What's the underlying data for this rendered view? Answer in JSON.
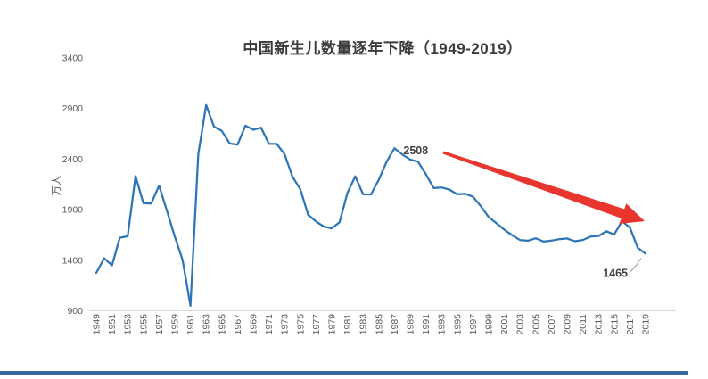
{
  "chart_data": {
    "type": "line",
    "title": "中国新生儿数量逐年下降（1949-2019）",
    "ylabel": "万人",
    "series_name": "中国新生儿数量",
    "ylim": [
      900,
      3400
    ],
    "y_ticks": [
      900,
      1400,
      1900,
      2400,
      2900,
      3400
    ],
    "grid": false,
    "legend_position": "none",
    "years": [
      1949,
      1950,
      1951,
      1952,
      1953,
      1954,
      1955,
      1956,
      1957,
      1958,
      1959,
      1960,
      1961,
      1962,
      1963,
      1964,
      1965,
      1966,
      1967,
      1968,
      1969,
      1970,
      1971,
      1972,
      1973,
      1974,
      1975,
      1976,
      1977,
      1978,
      1979,
      1980,
      1981,
      1982,
      1983,
      1984,
      1985,
      1986,
      1987,
      1988,
      1989,
      1990,
      1991,
      1992,
      1993,
      1994,
      1995,
      1996,
      1997,
      1998,
      1999,
      2000,
      2001,
      2002,
      2003,
      2004,
      2005,
      2006,
      2007,
      2008,
      2009,
      2010,
      2011,
      2012,
      2013,
      2014,
      2015,
      2016,
      2017,
      2018,
      2019
    ],
    "values": [
      1275,
      1419,
      1349,
      1622,
      1637,
      2232,
      1965,
      1961,
      2138,
      1889,
      1635,
      1402,
      949,
      2451,
      2934,
      2721,
      2679,
      2554,
      2543,
      2731,
      2690,
      2710,
      2551,
      2550,
      2447,
      2226,
      2102,
      1849,
      1783,
      1733,
      1715,
      1776,
      2064,
      2230,
      2052,
      2050,
      2196,
      2374,
      2508,
      2445,
      2396,
      2374,
      2250,
      2113,
      2120,
      2098,
      2052,
      2057,
      2028,
      1934,
      1827,
      1765,
      1702,
      1647,
      1599,
      1593,
      1617,
      1584,
      1594,
      1608,
      1615,
      1588,
      1600,
      1635,
      1640,
      1687,
      1655,
      1786,
      1723,
      1523,
      1465
    ],
    "x_tick_labels": [
      "1949",
      "1951",
      "1953",
      "1955",
      "1957",
      "1959",
      "1961",
      "1963",
      "1965",
      "1967",
      "1969",
      "1971",
      "1973",
      "1975",
      "1977",
      "1979",
      "1981",
      "1983",
      "1985",
      "1987",
      "1989",
      "1991",
      "1993",
      "1995",
      "1997",
      "1999",
      "2001",
      "2003",
      "2005",
      "2007",
      "2009",
      "2011",
      "2013",
      "2015",
      "2017",
      "2019"
    ],
    "annotations": [
      {
        "text": "2508",
        "year": 1987,
        "value": 2508,
        "placement": "right"
      },
      {
        "text": "1465",
        "year": 2019,
        "value": 1465,
        "placement": "below-left"
      }
    ],
    "colors": {
      "line": "#2E75B6",
      "axis_line": "#D9D9D9",
      "tick_text": "#595959",
      "title_text": "#3B3B3B",
      "annotation_text": "#404040",
      "leader_line": "#A6A6A6",
      "arrow": "#E8352E"
    }
  },
  "footer": {
    "bar_color": "#39689E"
  }
}
